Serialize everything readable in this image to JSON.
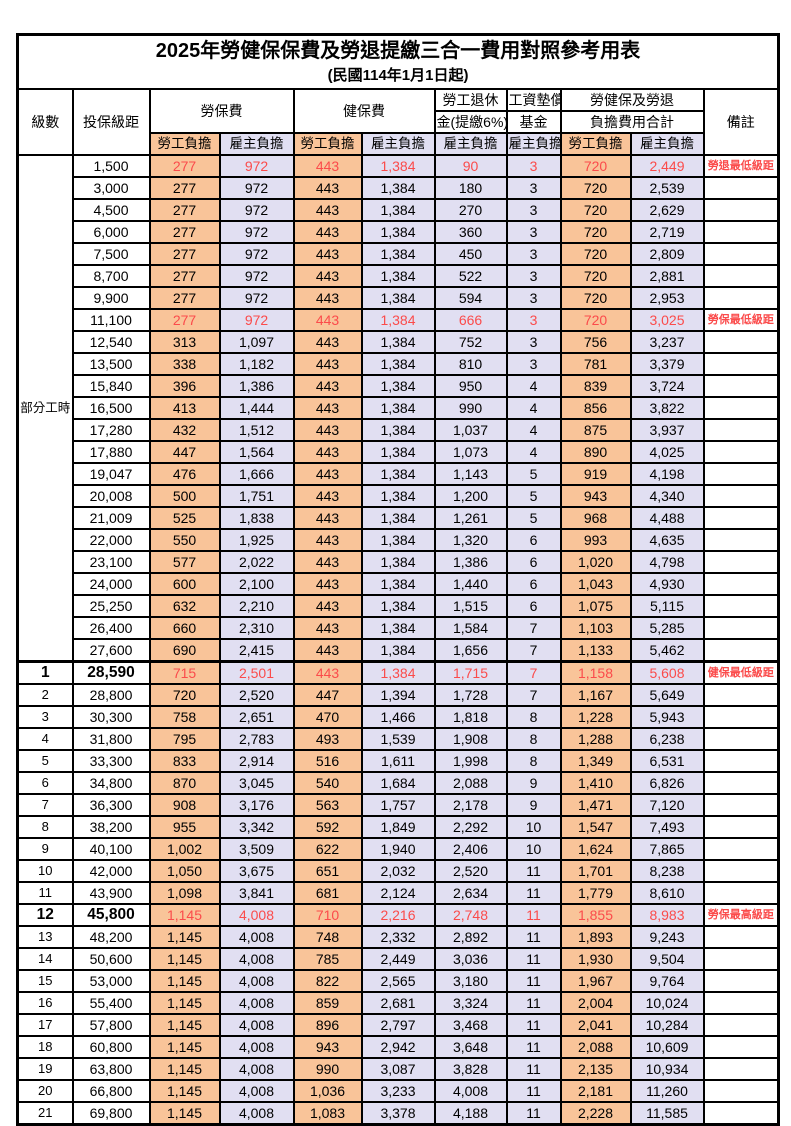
{
  "title": "2025年勞健保保費及勞退提繳三合一費用對照參考用表",
  "subtitle": "(民國114年1月1日起)",
  "colors": {
    "worker_col_bg": "#F9C499",
    "employer_col_bg": "#E1DFF2",
    "highlight_text": "#FB4B4B",
    "border": "#000000"
  },
  "header": {
    "level": "級數",
    "bracket": "投保級距",
    "labor_insurance": "勞保費",
    "health_insurance": "健保費",
    "pension_line1": "勞工退休",
    "pension_line2": "金(提繳6%)",
    "wage_fund_line1": "工資墊償",
    "wage_fund_line2": "基金",
    "total_line1": "勞健保及勞退",
    "total_line2": "負擔費用合計",
    "remark": "備註",
    "employee_share": "勞工負擔",
    "employer_share": "雇主負擔"
  },
  "table": {
    "part_time": {
      "label": "部分工時",
      "span": 23
    },
    "value_col_kinds": [
      "orange",
      "lav",
      "orange",
      "lav",
      "lav",
      "lav",
      "orange",
      "lav"
    ],
    "rows": [
      {
        "level": "",
        "bracket": "1,500",
        "values": [
          "277",
          "972",
          "443",
          "1,384",
          "90",
          "3",
          "720",
          "2,449"
        ],
        "note": "勞退最低級距",
        "red": true
      },
      {
        "level": "",
        "bracket": "3,000",
        "values": [
          "277",
          "972",
          "443",
          "1,384",
          "180",
          "3",
          "720",
          "2,539"
        ],
        "note": ""
      },
      {
        "level": "",
        "bracket": "4,500",
        "values": [
          "277",
          "972",
          "443",
          "1,384",
          "270",
          "3",
          "720",
          "2,629"
        ],
        "note": ""
      },
      {
        "level": "",
        "bracket": "6,000",
        "values": [
          "277",
          "972",
          "443",
          "1,384",
          "360",
          "3",
          "720",
          "2,719"
        ],
        "note": ""
      },
      {
        "level": "",
        "bracket": "7,500",
        "values": [
          "277",
          "972",
          "443",
          "1,384",
          "450",
          "3",
          "720",
          "2,809"
        ],
        "note": ""
      },
      {
        "level": "",
        "bracket": "8,700",
        "values": [
          "277",
          "972",
          "443",
          "1,384",
          "522",
          "3",
          "720",
          "2,881"
        ],
        "note": ""
      },
      {
        "level": "",
        "bracket": "9,900",
        "values": [
          "277",
          "972",
          "443",
          "1,384",
          "594",
          "3",
          "720",
          "2,953"
        ],
        "note": ""
      },
      {
        "level": "",
        "bracket": "11,100",
        "values": [
          "277",
          "972",
          "443",
          "1,384",
          "666",
          "3",
          "720",
          "3,025"
        ],
        "note": "勞保最低級距",
        "red": true
      },
      {
        "level": "",
        "bracket": "12,540",
        "values": [
          "313",
          "1,097",
          "443",
          "1,384",
          "752",
          "3",
          "756",
          "3,237"
        ],
        "note": ""
      },
      {
        "level": "",
        "bracket": "13,500",
        "values": [
          "338",
          "1,182",
          "443",
          "1,384",
          "810",
          "3",
          "781",
          "3,379"
        ],
        "note": ""
      },
      {
        "level": "",
        "bracket": "15,840",
        "values": [
          "396",
          "1,386",
          "443",
          "1,384",
          "950",
          "4",
          "839",
          "3,724"
        ],
        "note": ""
      },
      {
        "level": "",
        "bracket": "16,500",
        "values": [
          "413",
          "1,444",
          "443",
          "1,384",
          "990",
          "4",
          "856",
          "3,822"
        ],
        "note": ""
      },
      {
        "level": "",
        "bracket": "17,280",
        "values": [
          "432",
          "1,512",
          "443",
          "1,384",
          "1,037",
          "4",
          "875",
          "3,937"
        ],
        "note": ""
      },
      {
        "level": "",
        "bracket": "17,880",
        "values": [
          "447",
          "1,564",
          "443",
          "1,384",
          "1,073",
          "4",
          "890",
          "4,025"
        ],
        "note": ""
      },
      {
        "level": "",
        "bracket": "19,047",
        "values": [
          "476",
          "1,666",
          "443",
          "1,384",
          "1,143",
          "5",
          "919",
          "4,198"
        ],
        "note": ""
      },
      {
        "level": "",
        "bracket": "20,008",
        "values": [
          "500",
          "1,751",
          "443",
          "1,384",
          "1,200",
          "5",
          "943",
          "4,340"
        ],
        "note": ""
      },
      {
        "level": "",
        "bracket": "21,009",
        "values": [
          "525",
          "1,838",
          "443",
          "1,384",
          "1,261",
          "5",
          "968",
          "4,488"
        ],
        "note": ""
      },
      {
        "level": "",
        "bracket": "22,000",
        "values": [
          "550",
          "1,925",
          "443",
          "1,384",
          "1,320",
          "6",
          "993",
          "4,635"
        ],
        "note": ""
      },
      {
        "level": "",
        "bracket": "23,100",
        "values": [
          "577",
          "2,022",
          "443",
          "1,384",
          "1,386",
          "6",
          "1,020",
          "4,798"
        ],
        "note": ""
      },
      {
        "level": "",
        "bracket": "24,000",
        "values": [
          "600",
          "2,100",
          "443",
          "1,384",
          "1,440",
          "6",
          "1,043",
          "4,930"
        ],
        "note": ""
      },
      {
        "level": "",
        "bracket": "25,250",
        "values": [
          "632",
          "2,210",
          "443",
          "1,384",
          "1,515",
          "6",
          "1,075",
          "5,115"
        ],
        "note": ""
      },
      {
        "level": "",
        "bracket": "26,400",
        "values": [
          "660",
          "2,310",
          "443",
          "1,384",
          "1,584",
          "7",
          "1,103",
          "5,285"
        ],
        "note": ""
      },
      {
        "level": "",
        "bracket": "27,600",
        "values": [
          "690",
          "2,415",
          "443",
          "1,384",
          "1,656",
          "7",
          "1,133",
          "5,462"
        ],
        "note": ""
      },
      {
        "level": "1",
        "bracket": "28,590",
        "values": [
          "715",
          "2,501",
          "443",
          "1,384",
          "1,715",
          "7",
          "1,158",
          "5,608"
        ],
        "note": "健保最低級距",
        "red": true,
        "big": true,
        "thick": true
      },
      {
        "level": "2",
        "bracket": "28,800",
        "values": [
          "720",
          "2,520",
          "447",
          "1,394",
          "1,728",
          "7",
          "1,167",
          "5,649"
        ],
        "note": ""
      },
      {
        "level": "3",
        "bracket": "30,300",
        "values": [
          "758",
          "2,651",
          "470",
          "1,466",
          "1,818",
          "8",
          "1,228",
          "5,943"
        ],
        "note": ""
      },
      {
        "level": "4",
        "bracket": "31,800",
        "values": [
          "795",
          "2,783",
          "493",
          "1,539",
          "1,908",
          "8",
          "1,288",
          "6,238"
        ],
        "note": ""
      },
      {
        "level": "5",
        "bracket": "33,300",
        "values": [
          "833",
          "2,914",
          "516",
          "1,611",
          "1,998",
          "8",
          "1,349",
          "6,531"
        ],
        "note": ""
      },
      {
        "level": "6",
        "bracket": "34,800",
        "values": [
          "870",
          "3,045",
          "540",
          "1,684",
          "2,088",
          "9",
          "1,410",
          "6,826"
        ],
        "note": ""
      },
      {
        "level": "7",
        "bracket": "36,300",
        "values": [
          "908",
          "3,176",
          "563",
          "1,757",
          "2,178",
          "9",
          "1,471",
          "7,120"
        ],
        "note": ""
      },
      {
        "level": "8",
        "bracket": "38,200",
        "values": [
          "955",
          "3,342",
          "592",
          "1,849",
          "2,292",
          "10",
          "1,547",
          "7,493"
        ],
        "note": ""
      },
      {
        "level": "9",
        "bracket": "40,100",
        "values": [
          "1,002",
          "3,509",
          "622",
          "1,940",
          "2,406",
          "10",
          "1,624",
          "7,865"
        ],
        "note": ""
      },
      {
        "level": "10",
        "bracket": "42,000",
        "values": [
          "1,050",
          "3,675",
          "651",
          "2,032",
          "2,520",
          "11",
          "1,701",
          "8,238"
        ],
        "note": ""
      },
      {
        "level": "11",
        "bracket": "43,900",
        "values": [
          "1,098",
          "3,841",
          "681",
          "2,124",
          "2,634",
          "11",
          "1,779",
          "8,610"
        ],
        "note": ""
      },
      {
        "level": "12",
        "bracket": "45,800",
        "values": [
          "1,145",
          "4,008",
          "710",
          "2,216",
          "2,748",
          "11",
          "1,855",
          "8,983"
        ],
        "note": "勞保最高級距",
        "red": true,
        "big": true
      },
      {
        "level": "13",
        "bracket": "48,200",
        "values": [
          "1,145",
          "4,008",
          "748",
          "2,332",
          "2,892",
          "11",
          "1,893",
          "9,243"
        ],
        "note": ""
      },
      {
        "level": "14",
        "bracket": "50,600",
        "values": [
          "1,145",
          "4,008",
          "785",
          "2,449",
          "3,036",
          "11",
          "1,930",
          "9,504"
        ],
        "note": ""
      },
      {
        "level": "15",
        "bracket": "53,000",
        "values": [
          "1,145",
          "4,008",
          "822",
          "2,565",
          "3,180",
          "11",
          "1,967",
          "9,764"
        ],
        "note": ""
      },
      {
        "level": "16",
        "bracket": "55,400",
        "values": [
          "1,145",
          "4,008",
          "859",
          "2,681",
          "3,324",
          "11",
          "2,004",
          "10,024"
        ],
        "note": ""
      },
      {
        "level": "17",
        "bracket": "57,800",
        "values": [
          "1,145",
          "4,008",
          "896",
          "2,797",
          "3,468",
          "11",
          "2,041",
          "10,284"
        ],
        "note": ""
      },
      {
        "level": "18",
        "bracket": "60,800",
        "values": [
          "1,145",
          "4,008",
          "943",
          "2,942",
          "3,648",
          "11",
          "2,088",
          "10,609"
        ],
        "note": ""
      },
      {
        "level": "19",
        "bracket": "63,800",
        "values": [
          "1,145",
          "4,008",
          "990",
          "3,087",
          "3,828",
          "11",
          "2,135",
          "10,934"
        ],
        "note": ""
      },
      {
        "level": "20",
        "bracket": "66,800",
        "values": [
          "1,145",
          "4,008",
          "1,036",
          "3,233",
          "4,008",
          "11",
          "2,181",
          "11,260"
        ],
        "note": ""
      },
      {
        "level": "21",
        "bracket": "69,800",
        "values": [
          "1,145",
          "4,008",
          "1,083",
          "3,378",
          "4,188",
          "11",
          "2,228",
          "11,585"
        ],
        "note": ""
      }
    ]
  }
}
